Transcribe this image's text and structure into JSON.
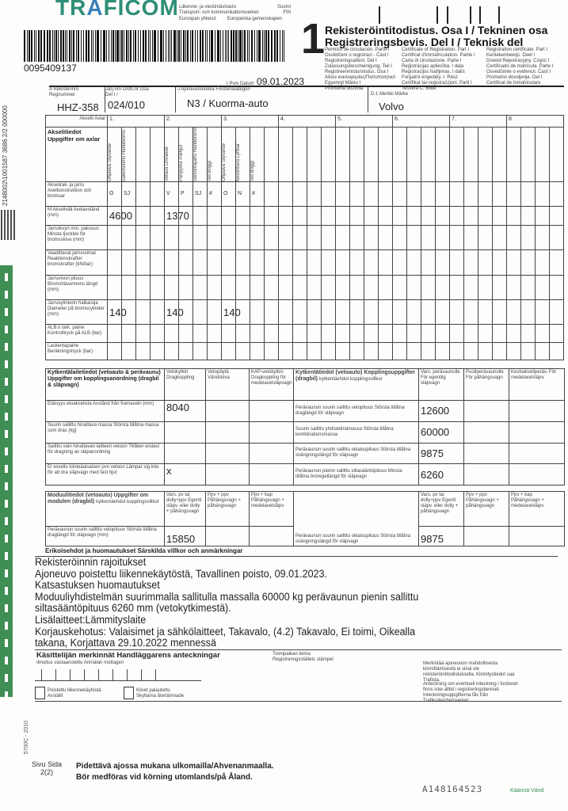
{
  "header": {
    "logo_text": "TRAFICOM",
    "agency_fi": "Liikenne- ja viestintävirasto",
    "agency_sv": "Transport- och kommunikationsverket",
    "country_code_1": "Suomi",
    "country_code_2": "FIN",
    "eu_fi": "Euroopan yhteisö",
    "eu_sv": "Europeiska gemenskapen",
    "barcode_number": "0095409137",
    "part_number": "1",
    "title_fi": "Rekisteröintitodistus. Osa I / Tekninen osa",
    "title_sv": "Registreringsbevis. Del I / Teknisk del",
    "translations_col1": [
      "Permiso de circulación. Parte I",
      "Osvědčení o registraci - Část I",
      "Registreringsattest. Del I",
      "Zulassungsbescheinigung, Teil I",
      "Registreerimistunnistus. Osa I",
      "Άδεια κυκλοφορίας/Πιστοποιητικό",
      "Egyenrgt Mäieu I",
      "Prometna dozvola"
    ],
    "translations_col2": [
      "Certificate of Registration. Part I",
      "Certificat d'immatriculation. Partie I",
      "Carta di circolazione. Parte I",
      "Reģistrācijas apliecība. I daļa",
      "Registracijos liudijimas. I dalis",
      "Forgalmi engedély. I. Rész",
      "Certifikat tar-reġistrazzjoni. Parti I",
      "Tessera C. Bilde"
    ],
    "translations_col3": [
      "Registration certificate. Part I",
      "Kentekenbewijs. Deel I",
      "Dowód Rejestracyjny. Część I",
      "Certificado de matrícula. Parte I",
      "Osvedčenie o evidencii. Časť I",
      "Prometno dovoljenje. Del I",
      "Certificat de înmatriculare"
    ],
    "date_label": "I Pvm Datum",
    "date_value": "09.01.2023"
  },
  "side_text": {
    "vertical_code": "2148002\\1001587 3686 2/2 000000",
    "form_code": "5700C - 2010"
  },
  "identity": {
    "reg_label": "A Rekisterinro Regnummer",
    "reg_value": "HHZ-358",
    "order_label": "Järj.nro Ordn.nr Osa Del I /",
    "order_value": "024/010",
    "category_label": "J Ajoneuvoluokka Fordonskategori",
    "category_value": "N3 / Kuorma-auto",
    "make_label": "D.1 Merkki Märke",
    "make_value": "Volvo"
  },
  "axles": {
    "corner_label": "Akselit Axlar",
    "section_label": "Akselitiedot Uppgifter om axlar",
    "axle_numbers": [
      "1.",
      "2.",
      "3.",
      "4.",
      "5.",
      "6.",
      "7.",
      "8."
    ],
    "sub_headers": [
      [
        "Ohjaava Styrande",
        "Sakkovaimu Handbroms",
        "",
        ""
      ],
      [
        "Vetävä Drivande",
        "Paripyörä Parhjul",
        "Seisontajarru Handbroms",
        "Teli Boggi"
      ],
      [
        "Ohjaava Styrande",
        "Nostettava Lyftbar",
        "Teli Boggi",
        ""
      ],
      [
        "",
        "",
        "",
        ""
      ],
      [
        "",
        "",
        "",
        ""
      ],
      [
        "",
        "",
        "",
        ""
      ],
      [
        "",
        "",
        "",
        ""
      ],
      [
        "",
        "",
        "",
        ""
      ]
    ],
    "rows": [
      {
        "label": "Akselirak. ja jarru Axelkonstruktion och bromsar",
        "cells": [
          [
            "O",
            "SJ",
            "",
            ""
          ],
          [
            "V",
            "P",
            "SJ",
            "#"
          ],
          [
            "O",
            "N",
            "#",
            ""
          ]
        ]
      },
      {
        "label": "M Akseliväli Axelavstånd (mm)",
        "cells": [
          [
            "4600",
            "",
            "",
            ""
          ],
          [
            "1370",
            "",
            "",
            ""
          ]
        ]
      },
      {
        "label": "Jarrulevyn min. paksuus Minsta tjocklek för bromsskiva (mm)",
        "cells": []
      },
      {
        "label": "Vaadittavat jarruvoimat Reaktionskrafter bromskrafter (kN/bar)",
        "cells": []
      },
      {
        "label": "Jarruvivun pituus Bromshävarmens längd (mm)",
        "cells": []
      },
      {
        "label": "Jarrusylinterin halkaisija Diameter på bromscylinder (mm)",
        "cells": [
          [
            "140",
            "",
            "",
            ""
          ],
          [
            "140",
            "",
            "",
            ""
          ],
          [
            "140",
            "",
            "",
            ""
          ]
        ]
      },
      {
        "label": "ALB:n tark. paine Kontrolltryck på ALB (bar)",
        "cells": []
      },
      {
        "label": "Laskentapaine Beräkningstryck (bar)",
        "cells": []
      }
    ]
  },
  "coupling": {
    "left_header": "Kytkentälaitetiedot (vetoauto & perävaunu) Uppgifter om kopplingsanordning (dragbil & släpvagn)",
    "col_headers": [
      "Vetokytkin Dragkoppling",
      "Vetopöytä Vändskiva",
      "KAP-vetokytkin Dragkoppling för medelaxelsläpvagn"
    ],
    "right_header_bold": "Kytkentätiedot (vetoauto) Kopplingsuppgifter (dragbil)",
    "right_header_sub": "kytkentäehdot kopplingsvillkor",
    "right_col_headers": [
      "Vars. perävaunulle För egentlig släpvagn",
      "Puoliperävaunulle För påhängsvagn",
      "Keskiakseliperäv. För medelaxelsläpv."
    ],
    "left_rows": [
      {
        "label": "Etäisyys etuakselista Avstånd från framaxeln (mm)",
        "values": [
          "8040",
          "",
          ""
        ]
      },
      {
        "label": "Suurin sallittu hinattava massa Största tillåtna massa som dras (kg)",
        "values": [
          "",
          "",
          ""
        ]
      },
      {
        "label": "Sallittu vain hinattavan laitteen vetoon Tillåten endast för dragning av släpanordning",
        "values": [
          "",
          "",
          ""
        ]
      },
      {
        "label": "Ei sovellu kiinteäaisaisen pvn vetoon Lämpar sig inte för att dra släpvagn med fast hjul",
        "values": [
          "x",
          "",
          ""
        ]
      }
    ],
    "right_rows": [
      {
        "label": "Perävaunun suurin sallittu vetopituus Största tillåtna draglängd för släpvagn",
        "values": [
          "12600",
          "",
          ""
        ]
      },
      {
        "label": "Suurin sallittu yhdistelmämassa Största tillåtna kombinationsmassa",
        "values": [
          "60000",
          "",
          ""
        ]
      },
      {
        "label": "Perävaunun suurin sallittu oikaisupituus Största tillåtna svängningslängd för släpvagn",
        "values": [
          "9875",
          "",
          ""
        ]
      },
      {
        "label": "Perävaunun pienin sallittu siltasääntöpituus Minsta tillåtna broregellängd för släpvagn",
        "values": [
          "6260",
          "",
          ""
        ]
      }
    ]
  },
  "module": {
    "header_bold": "Moduulitiedot (vetoauto) Uppgifter om modulen (dragbil)",
    "header_sub": "kytkentäehdot kopplingsvillkor",
    "col_headers": [
      "Vars. pv tai dolly+ppv Egentl. släpv. eller dolly + påhängsvagn",
      "Ppv + ppv Påhängsvagn + påhängsvagn",
      "Ppv + kap Påhängsvagn + medelaxelsläpv"
    ],
    "left_label": "Perävaunun suurin sallittu vetopituus Största tillåtna draglängd för släpvagn (mm)",
    "left_values": [
      "15850",
      "",
      ""
    ],
    "right_label": "Perävaunun suurin sallittu oikaisupituus Största tillåtna svängningslängd för släpvagn",
    "right_values": [
      "9875",
      "",
      ""
    ]
  },
  "remarks": {
    "heading": "Erikoisehdot ja huomautukset Särskilda villkor och anmärkningar",
    "lines": [
      "Rekisteröinnin rajoitukset",
      "Ajoneuvo poistettu liikennekäytöstä, Tavallinen poisto, 09.01.2023.",
      "Katsastuksen huomautukset",
      "Moduuliyhdistelmän suurimmalla sallitulla massalla 60000 kg perävaunun pienin sallittu",
      "siltasääntöpituus 6260 mm (vetokytkimestä).",
      "Lisälaitteet:Lämmityslaite",
      "Korjauskehotus: Valaisimet ja sähkölaitteet, Takavalo, (4.2) Takavalo, Ei toimi, Oikealla",
      "takana, Korjattava 29.10.2022 mennessä"
    ]
  },
  "handler": {
    "heading": "Käsittelijän merkinnät Handläggarens anteckningar",
    "notice_label": "Ilmoitus vastaanotettu Anmälan mottagen",
    "stamp_label_1": "Toimipaikan leima",
    "stamp_label_2": "Registreringsställets stämpel",
    "checkbox_1_line1": "Poistettu liikennekäytöstä",
    "checkbox_1_line2": "Avställt",
    "checkbox_2_line1": "Kilvet palautettu",
    "checkbox_2_line2": "Skyltarna återlämnade",
    "note_fi": "Merkintää ajoneuvon mahdollisesta kiinnittämisestä ei siinä ole rekisteröintitodistuksella. Kiinnitystiedot saa Trafista.",
    "note_sv": "Anteckning om eventuell intecknng i fordonet finns icke alltid i registreringsbeviset. Inteckningsuppgifterna fås från Trafiksäkerhetsverket."
  },
  "footer": {
    "page_label": "Sivu Sida",
    "page_value": "2(2)",
    "notice_fi": "Pidettävä ajossa mukana ulkomailla/Ahvenanmaalla.",
    "notice_sv": "Bör medföras vid körning utomlands/på Åland.",
    "serial": "A148164523",
    "turn": "Käännä Vänd"
  },
  "colors": {
    "brand_green": "#2f8f78",
    "brand_blue": "#3a7fb6",
    "strip_green": "#3f8f55"
  }
}
